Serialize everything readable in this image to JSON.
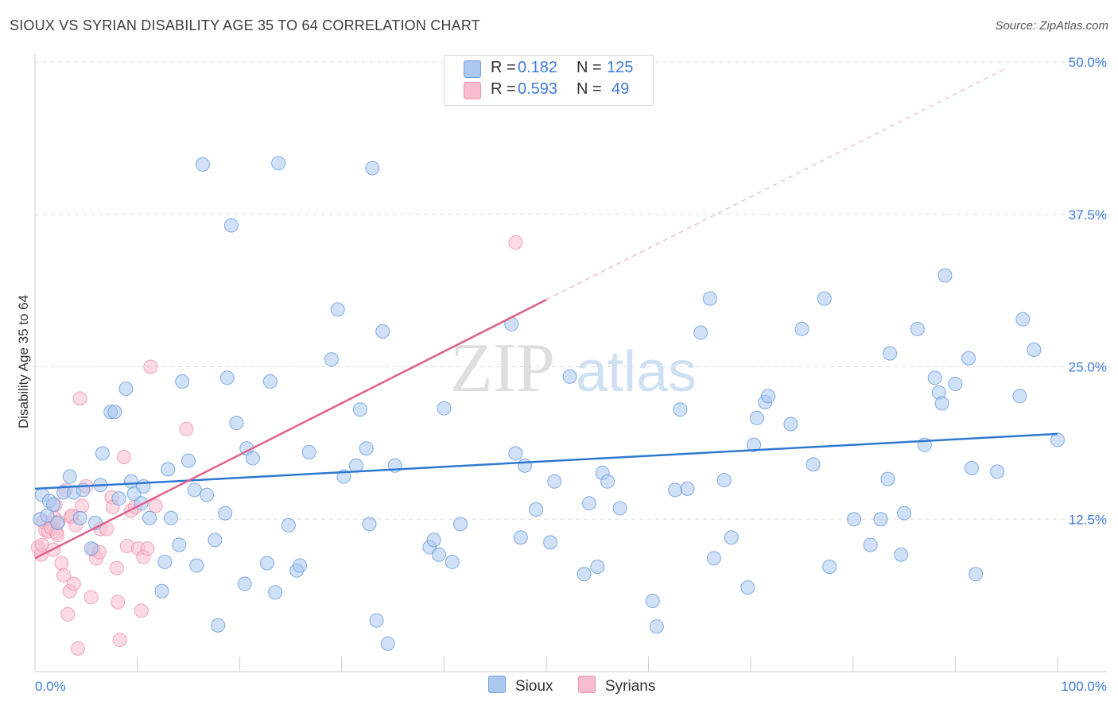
{
  "title": "SIOUX VS SYRIAN DISABILITY AGE 35 TO 64 CORRELATION CHART",
  "source": "Source: ZipAtlas.com",
  "watermark": {
    "zip": "ZIP",
    "atlas": "atlas"
  },
  "legend_top": [
    {
      "r_label": "R =",
      "r_value": "0.182",
      "n_label": "N =",
      "n_value": "125"
    },
    {
      "r_label": "R =",
      "r_value": "0.593",
      "n_label": "N =",
      "n_value": "49"
    }
  ],
  "legend_bottom": {
    "sioux": "Sioux",
    "syrians": "Syrians"
  },
  "colors": {
    "sioux_fill": "#aac8f0",
    "sioux_stroke": "#6f9fdd",
    "sioux_line": "#2f78d0",
    "syr_fill": "#f7bccd",
    "syr_stroke": "#ef93ae",
    "syr_line": "#e0608a",
    "tick_label": "#3f7ad6",
    "grid": "#dcdcdc"
  },
  "chart_data": {
    "type": "scatter",
    "title": "SIOUX VS SYRIAN DISABILITY AGE 35 TO 64 CORRELATION CHART",
    "xlabel": "",
    "ylabel": "Disability Age 35 to 64",
    "xlim": [
      0,
      100
    ],
    "ylim": [
      0,
      50
    ],
    "x_tick_labels": [
      {
        "value": 0,
        "label": "0.0%"
      },
      {
        "value": 100,
        "label": "100.0%"
      }
    ],
    "y_tick_labels": [
      {
        "value": 12.5,
        "label": "12.5%"
      },
      {
        "value": 25,
        "label": "25.0%"
      },
      {
        "value": 37.5,
        "label": "37.5%"
      },
      {
        "value": 50,
        "label": "50.0%"
      }
    ],
    "series": [
      {
        "name": "Sioux",
        "r": 0.182,
        "n": 125,
        "trend": {
          "x": [
            0,
            100
          ],
          "y": [
            15.0,
            19.5
          ]
        },
        "points": [
          [
            0.5,
            12.5
          ],
          [
            0.7,
            14.5
          ],
          [
            1.2,
            12.8
          ],
          [
            1.4,
            14.0
          ],
          [
            1.8,
            13.7
          ],
          [
            2.2,
            12.2
          ],
          [
            2.8,
            14.7
          ],
          [
            3.4,
            16.0
          ],
          [
            3.8,
            14.7
          ],
          [
            4.4,
            12.6
          ],
          [
            4.7,
            14.9
          ],
          [
            5.5,
            10.1
          ],
          [
            5.9,
            12.2
          ],
          [
            6.4,
            15.3
          ],
          [
            6.6,
            17.9
          ],
          [
            7.4,
            21.3
          ],
          [
            7.8,
            21.3
          ],
          [
            8.2,
            14.2
          ],
          [
            8.9,
            23.2
          ],
          [
            9.4,
            15.6
          ],
          [
            9.7,
            14.6
          ],
          [
            10.4,
            13.8
          ],
          [
            10.6,
            15.2
          ],
          [
            11.2,
            12.6
          ],
          [
            12.4,
            6.6
          ],
          [
            12.7,
            9.0
          ],
          [
            13.0,
            16.6
          ],
          [
            13.3,
            12.6
          ],
          [
            14.1,
            10.4
          ],
          [
            14.4,
            23.8
          ],
          [
            15.0,
            17.3
          ],
          [
            15.6,
            14.9
          ],
          [
            15.8,
            8.7
          ],
          [
            16.4,
            41.6
          ],
          [
            16.8,
            14.5
          ],
          [
            17.6,
            10.8
          ],
          [
            17.9,
            3.8
          ],
          [
            18.6,
            13.0
          ],
          [
            18.8,
            24.1
          ],
          [
            19.2,
            36.6
          ],
          [
            19.7,
            20.4
          ],
          [
            20.5,
            7.2
          ],
          [
            20.7,
            18.3
          ],
          [
            21.3,
            17.5
          ],
          [
            22.7,
            8.9
          ],
          [
            23.0,
            23.8
          ],
          [
            23.5,
            6.5
          ],
          [
            23.8,
            41.7
          ],
          [
            24.8,
            12.0
          ],
          [
            25.6,
            8.3
          ],
          [
            25.9,
            8.7
          ],
          [
            26.8,
            18.0
          ],
          [
            29.0,
            25.6
          ],
          [
            29.6,
            29.7
          ],
          [
            30.2,
            16.0
          ],
          [
            31.4,
            16.9
          ],
          [
            31.8,
            21.5
          ],
          [
            32.4,
            18.3
          ],
          [
            32.7,
            12.1
          ],
          [
            33.0,
            41.3
          ],
          [
            33.4,
            4.2
          ],
          [
            34.0,
            27.9
          ],
          [
            34.5,
            2.3
          ],
          [
            35.2,
            16.9
          ],
          [
            38.6,
            10.2
          ],
          [
            39.0,
            10.8
          ],
          [
            39.5,
            9.6
          ],
          [
            40.0,
            21.6
          ],
          [
            40.8,
            9.0
          ],
          [
            41.6,
            12.1
          ],
          [
            46.6,
            28.5
          ],
          [
            47.0,
            17.9
          ],
          [
            47.5,
            11.0
          ],
          [
            47.9,
            16.9
          ],
          [
            49.0,
            13.3
          ],
          [
            50.4,
            10.6
          ],
          [
            50.8,
            15.6
          ],
          [
            52.3,
            24.2
          ],
          [
            53.7,
            8.0
          ],
          [
            54.2,
            13.8
          ],
          [
            55.0,
            8.6
          ],
          [
            55.5,
            16.3
          ],
          [
            56.0,
            15.6
          ],
          [
            57.2,
            13.4
          ],
          [
            60.4,
            5.8
          ],
          [
            60.8,
            3.7
          ],
          [
            62.6,
            14.9
          ],
          [
            63.1,
            21.5
          ],
          [
            63.8,
            15.0
          ],
          [
            65.1,
            27.8
          ],
          [
            66.0,
            30.6
          ],
          [
            66.4,
            9.3
          ],
          [
            67.4,
            15.7
          ],
          [
            68.1,
            11.0
          ],
          [
            69.7,
            6.9
          ],
          [
            70.3,
            18.6
          ],
          [
            70.6,
            20.8
          ],
          [
            71.4,
            22.1
          ],
          [
            71.7,
            22.6
          ],
          [
            73.9,
            20.3
          ],
          [
            75.0,
            28.1
          ],
          [
            76.1,
            17.0
          ],
          [
            77.2,
            30.6
          ],
          [
            77.7,
            8.6
          ],
          [
            80.1,
            12.5
          ],
          [
            81.7,
            10.4
          ],
          [
            82.7,
            12.5
          ],
          [
            83.4,
            15.8
          ],
          [
            83.6,
            26.1
          ],
          [
            84.7,
            9.6
          ],
          [
            85.0,
            13.0
          ],
          [
            86.3,
            28.1
          ],
          [
            87.0,
            18.6
          ],
          [
            88.0,
            24.1
          ],
          [
            88.4,
            22.9
          ],
          [
            88.7,
            22.0
          ],
          [
            89.0,
            32.5
          ],
          [
            90.0,
            23.6
          ],
          [
            91.3,
            25.7
          ],
          [
            91.6,
            16.7
          ],
          [
            92.0,
            8.0
          ],
          [
            94.1,
            16.4
          ],
          [
            96.3,
            22.6
          ],
          [
            96.6,
            28.9
          ],
          [
            97.7,
            26.4
          ],
          [
            100.0,
            19.0
          ]
        ]
      },
      {
        "name": "Syrians",
        "r": 0.593,
        "n": 49,
        "trend": {
          "x": [
            0,
            50
          ],
          "y": [
            9.3,
            30.5
          ]
        },
        "trend_extrapolated": {
          "x": [
            50,
            95
          ],
          "y": [
            30.5,
            49.5
          ]
        },
        "points": [
          [
            0.3,
            10.2
          ],
          [
            0.6,
            9.6
          ],
          [
            0.7,
            10.4
          ],
          [
            0.8,
            12.3
          ],
          [
            1.0,
            11.6
          ],
          [
            1.3,
            11.5
          ],
          [
            1.6,
            11.8
          ],
          [
            1.8,
            10.0
          ],
          [
            1.9,
            12.6
          ],
          [
            2.0,
            13.7
          ],
          [
            2.1,
            11.4
          ],
          [
            2.2,
            11.2
          ],
          [
            2.3,
            12.3
          ],
          [
            2.6,
            8.9
          ],
          [
            2.8,
            7.9
          ],
          [
            3.0,
            14.9
          ],
          [
            3.2,
            4.7
          ],
          [
            3.4,
            6.6
          ],
          [
            3.5,
            12.7
          ],
          [
            3.6,
            12.8
          ],
          [
            3.8,
            7.2
          ],
          [
            4.0,
            12.0
          ],
          [
            4.2,
            1.9
          ],
          [
            4.4,
            22.4
          ],
          [
            4.6,
            13.6
          ],
          [
            5.0,
            15.2
          ],
          [
            5.5,
            6.1
          ],
          [
            5.7,
            10.0
          ],
          [
            6.0,
            9.3
          ],
          [
            6.3,
            9.8
          ],
          [
            6.4,
            11.7
          ],
          [
            7.0,
            11.7
          ],
          [
            7.5,
            14.3
          ],
          [
            7.6,
            13.5
          ],
          [
            8.0,
            8.5
          ],
          [
            8.1,
            5.7
          ],
          [
            8.3,
            2.6
          ],
          [
            8.7,
            17.6
          ],
          [
            9.0,
            10.3
          ],
          [
            9.4,
            13.2
          ],
          [
            9.8,
            13.5
          ],
          [
            10.1,
            10.1
          ],
          [
            10.4,
            5.0
          ],
          [
            10.6,
            9.4
          ],
          [
            11.0,
            10.1
          ],
          [
            11.3,
            25.0
          ],
          [
            11.8,
            13.6
          ],
          [
            14.8,
            19.9
          ],
          [
            47.0,
            35.2
          ]
        ]
      }
    ]
  }
}
